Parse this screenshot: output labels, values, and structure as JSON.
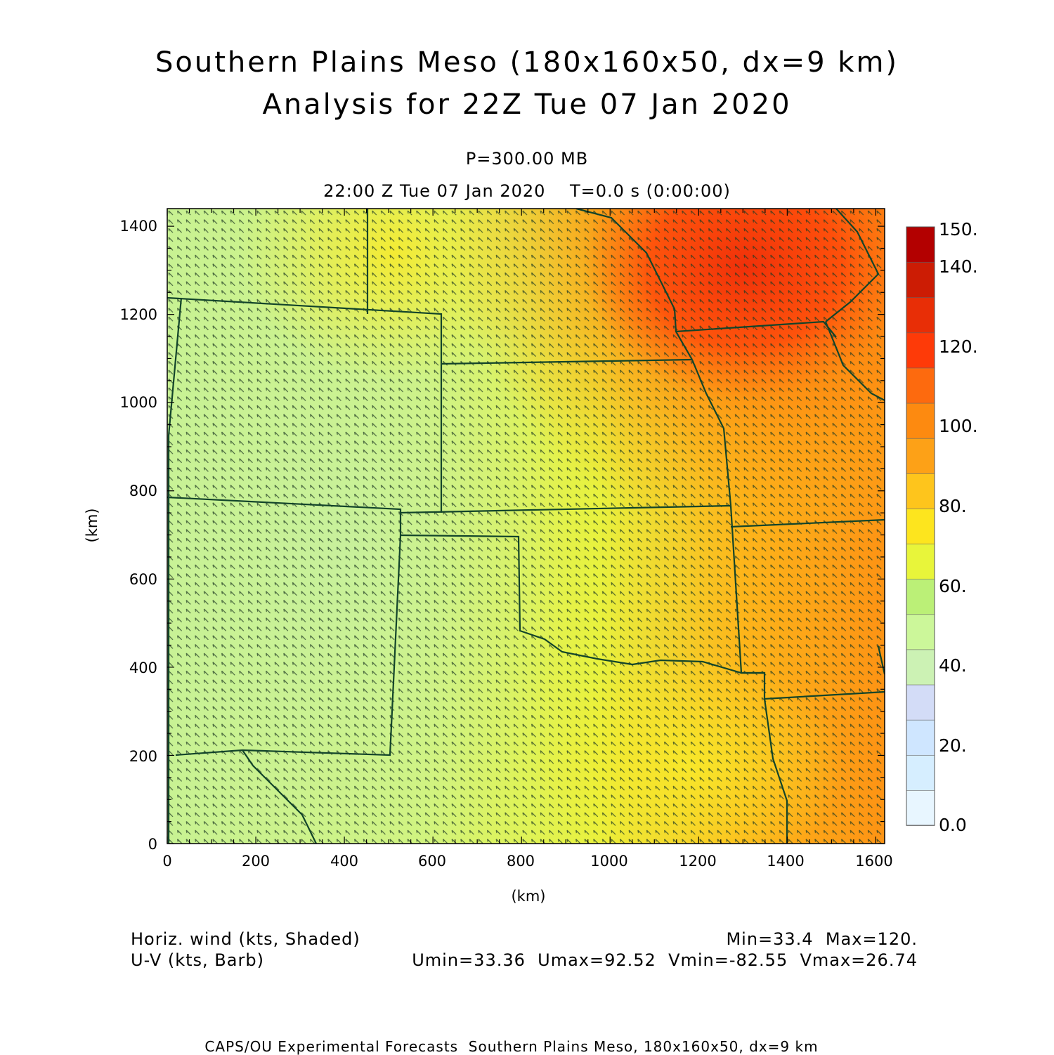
{
  "title": {
    "line1": "Southern Plains Meso (180x160x50, dx=9 km)",
    "line2": "Analysis for 22Z Tue 07 Jan 2020"
  },
  "subtitle": {
    "level": "P=300.00 MB",
    "time": "22:00 Z Tue 07 Jan 2020    T=0.0 s (0:00:00)"
  },
  "axes": {
    "x_label": "(km)",
    "y_label": "(km)",
    "x_ticks": [
      "0",
      "200",
      "400",
      "600",
      "800",
      "1000",
      "1200",
      "1400",
      "1600"
    ],
    "y_ticks": [
      "0",
      "200",
      "400",
      "600",
      "800",
      "1000",
      "1200",
      "1400"
    ]
  },
  "colorbar": {
    "labels": [
      "0.0",
      "20.",
      "40.",
      "60.",
      "80.",
      "100.",
      "120.",
      "140.",
      "150."
    ],
    "colors": [
      "#e8f6ff",
      "#d6eeff",
      "#cfe6ff",
      "#d3dcf7",
      "#ccf2b4",
      "#ccf79a",
      "#bbf077",
      "#e8f53a",
      "#fde51e",
      "#fec51c",
      "#fda117",
      "#fd8a10",
      "#fd6a0e",
      "#fe3a08",
      "#e82e06",
      "#cc1c04",
      "#b30000"
    ]
  },
  "legend": {
    "field1": "Horiz. wind (kts, Shaded)",
    "field2": "U-V (kts, Barb)",
    "minmax": "Min=33.4  Max=120.",
    "uvminmax": "Umin=33.36  Umax=92.52  Vmin=-82.55  Vmax=26.74"
  },
  "footer": "CAPS/OU Experimental Forecasts  Southern Plains Meso, 180x160x50, dx=9 km"
}
